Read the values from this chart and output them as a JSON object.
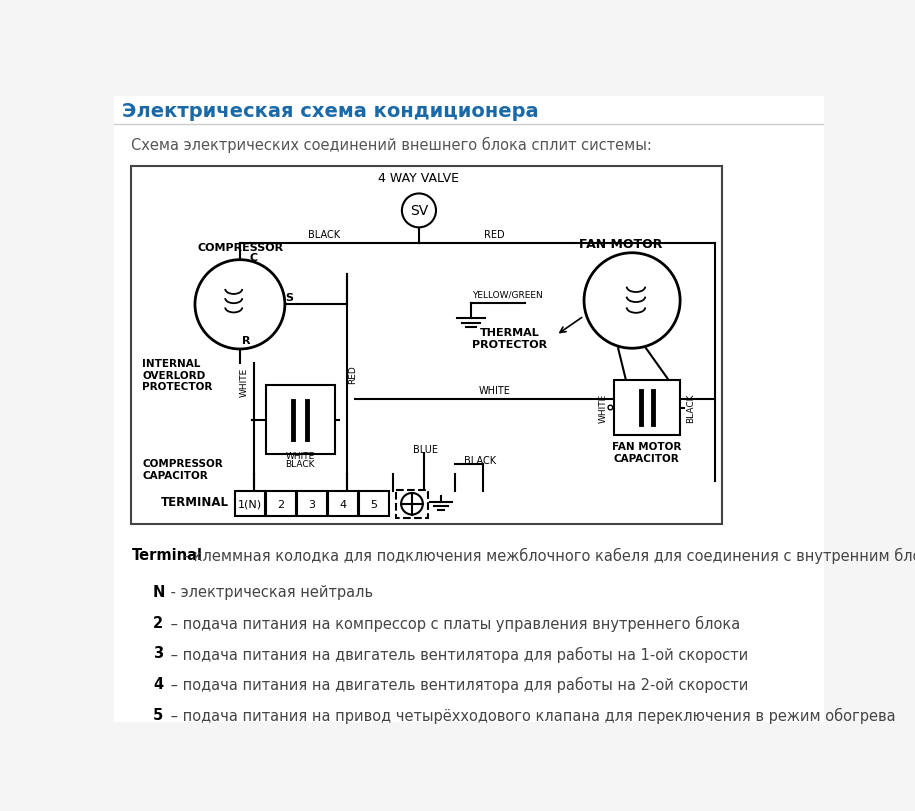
{
  "title": "Электрическая схема кондиционера",
  "subtitle": "Схема электрических соединений внешнего блока сплит системы:",
  "title_color": "#1a6aaa",
  "bg_color": "#f5f5f5",
  "text_color": "#333333",
  "terminal_label": "Terminal",
  "terminal_desc": " - клеммная колодка для подключения межблочного кабеля для соединения с внутренним блоком.",
  "descriptions": [
    [
      "N",
      " - электрическая нейтраль"
    ],
    [
      "2",
      " – подача питания на компрессор с платы управления внутреннего блока"
    ],
    [
      "3",
      " – подача питания на двигатель вентилятора для работы на 1-ой скорости"
    ],
    [
      "4",
      " – подача питания на двигатель вентилятора для работы на 2-ой скорости"
    ],
    [
      "5",
      " – подача питания на привод четырёхходового клапана для переключения в режим обогрева"
    ]
  ]
}
